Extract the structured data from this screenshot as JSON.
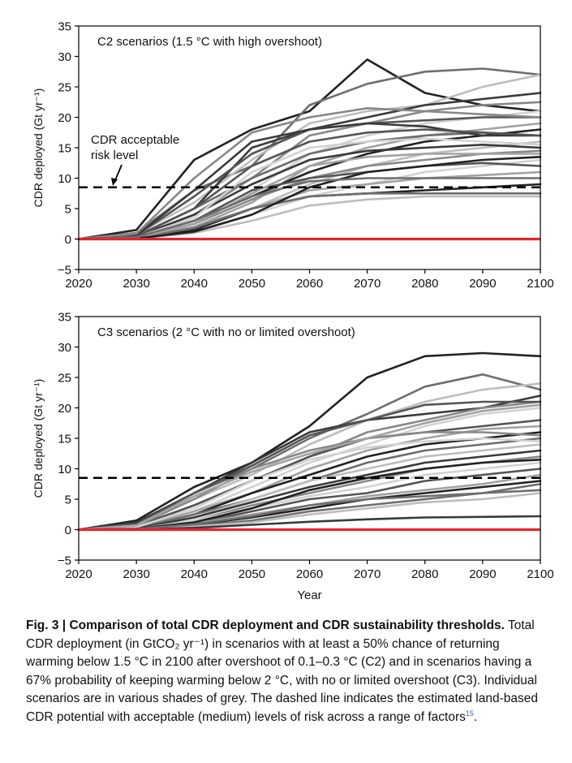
{
  "chart_data": [
    {
      "type": "line",
      "title": "C2 scenarios (1.5 °C with high overshoot)",
      "xlabel": "",
      "ylabel": "CDR deployed (Gt yr⁻¹)",
      "x": [
        2020,
        2030,
        2040,
        2050,
        2060,
        2070,
        2080,
        2090,
        2100
      ],
      "xlim": [
        2020,
        2100
      ],
      "ylim": [
        -5,
        35
      ],
      "x_ticks": [
        "2020",
        "2030",
        "2040",
        "2050",
        "2060",
        "2070",
        "2080",
        "2090",
        "2100"
      ],
      "y_ticks": [
        "35",
        "30",
        "25",
        "20",
        "15",
        "10",
        "5",
        "0",
        "−5"
      ],
      "threshold": 8.5,
      "threshold_style": "dashed",
      "zero_line_color": "#e8242e",
      "annotation": [
        "CDR acceptable",
        "risk level"
      ],
      "grid": false,
      "series_colors": [
        "#222222",
        "#3a3a3a",
        "#555555",
        "#6e6e6e",
        "#888888",
        "#a2a2a2",
        "#bdbdbd",
        "#d2d2d2"
      ],
      "series": [
        {
          "values": [
            0,
            1.5,
            13,
            18,
            21,
            29.5,
            24,
            22,
            21
          ]
        },
        {
          "values": [
            0,
            1.0,
            8,
            12,
            22,
            25.5,
            27.5,
            28,
            27
          ]
        },
        {
          "values": [
            0,
            0.8,
            6,
            13,
            19,
            21,
            22,
            25,
            27
          ]
        },
        {
          "values": [
            0,
            0.5,
            5,
            15,
            18,
            20,
            22,
            23,
            24
          ]
        },
        {
          "values": [
            0,
            0.4,
            4,
            10,
            17,
            19,
            21,
            22,
            22.5
          ]
        },
        {
          "values": [
            0,
            0.3,
            3,
            8,
            14,
            17,
            19,
            20,
            21
          ]
        },
        {
          "values": [
            0,
            0.6,
            7,
            14,
            18,
            19,
            19.5,
            20,
            20
          ]
        },
        {
          "values": [
            0,
            0.2,
            2,
            6,
            12,
            15,
            17,
            18,
            19
          ]
        },
        {
          "values": [
            0,
            0.3,
            3,
            7,
            11,
            14,
            16,
            17,
            18
          ]
        },
        {
          "values": [
            0,
            0.5,
            5,
            10,
            14,
            16,
            17,
            17.5,
            17
          ]
        },
        {
          "values": [
            0,
            0.1,
            1.5,
            5,
            9,
            12,
            14,
            15,
            16
          ]
        },
        {
          "values": [
            0,
            0.4,
            4,
            9,
            13,
            14.5,
            15,
            15.5,
            15
          ]
        },
        {
          "values": [
            0,
            0.2,
            2.5,
            6.5,
            10,
            12,
            13,
            14,
            14.5
          ]
        },
        {
          "values": [
            0,
            0.1,
            1,
            4,
            7,
            9,
            11,
            12,
            13
          ]
        },
        {
          "values": [
            0,
            0.3,
            3,
            8,
            10,
            11,
            12,
            12.5,
            12
          ]
        },
        {
          "values": [
            0,
            0.2,
            2,
            5,
            8,
            9,
            10,
            10.5,
            11
          ]
        },
        {
          "values": [
            0,
            0.1,
            1.5,
            5,
            7,
            7.5,
            8,
            8.5,
            9
          ]
        },
        {
          "values": [
            0,
            0.2,
            1.8,
            5,
            7,
            7.5,
            7.5,
            7.5,
            7.5
          ]
        },
        {
          "values": [
            0,
            0.1,
            1,
            3,
            5.5,
            6.5,
            7,
            7,
            7
          ]
        },
        {
          "values": [
            0,
            0.6,
            8,
            16,
            18,
            19,
            18.5,
            17,
            17
          ]
        },
        {
          "values": [
            0,
            0.9,
            10,
            17.5,
            20,
            21.5,
            21,
            20.5,
            20
          ]
        },
        {
          "values": [
            0,
            0.3,
            3.5,
            11,
            15,
            16,
            16.5,
            16,
            15.5
          ]
        },
        {
          "values": [
            0,
            0.4,
            5,
            12,
            16,
            17.5,
            18,
            17.5,
            17
          ]
        },
        {
          "values": [
            0,
            0.2,
            2.5,
            7.5,
            12,
            13.5,
            14,
            14,
            14
          ]
        },
        {
          "values": [
            0,
            0.1,
            1.2,
            4,
            8.5,
            11,
            12,
            13,
            13.5
          ]
        },
        {
          "values": [
            0,
            0.3,
            3,
            7,
            9.5,
            10,
            10,
            10,
            10
          ]
        }
      ]
    },
    {
      "type": "line",
      "title": "C3 scenarios (2 °C with no or limited overshoot)",
      "xlabel": "Year",
      "ylabel": "CDR deployed (Gt yr⁻¹)",
      "x": [
        2020,
        2030,
        2040,
        2050,
        2060,
        2070,
        2080,
        2090,
        2100
      ],
      "xlim": [
        2020,
        2100
      ],
      "ylim": [
        -5,
        35
      ],
      "x_ticks": [
        "2020",
        "2030",
        "2040",
        "2050",
        "2060",
        "2070",
        "2080",
        "2090",
        "2100"
      ],
      "y_ticks": [
        "35",
        "30",
        "25",
        "20",
        "15",
        "10",
        "5",
        "0",
        "−5"
      ],
      "threshold": 8.5,
      "threshold_style": "dashed",
      "zero_line_color": "#e8242e",
      "grid": false,
      "series_colors": [
        "#222222",
        "#3a3a3a",
        "#555555",
        "#6e6e6e",
        "#888888",
        "#a2a2a2",
        "#bdbdbd",
        "#d2d2d2"
      ],
      "series": [
        {
          "values": [
            0,
            1.5,
            7,
            11,
            17,
            25,
            28.5,
            29,
            28.5
          ]
        },
        {
          "values": [
            0,
            1.0,
            6,
            10,
            15,
            19,
            23.5,
            25.5,
            23
          ]
        },
        {
          "values": [
            0,
            0.8,
            5,
            9,
            14,
            18,
            21,
            23,
            24
          ]
        },
        {
          "values": [
            0,
            1.2,
            6,
            11,
            16,
            18,
            19,
            20,
            22
          ]
        },
        {
          "values": [
            0,
            0.5,
            4,
            8,
            12,
            16,
            18,
            20,
            21
          ]
        },
        {
          "values": [
            0,
            0.4,
            3,
            7,
            11,
            14,
            17,
            19,
            20
          ]
        },
        {
          "values": [
            0,
            0.6,
            4,
            8,
            12,
            15,
            16,
            17,
            18
          ]
        },
        {
          "values": [
            0,
            0.3,
            3,
            6,
            10,
            13,
            15,
            16.5,
            17
          ]
        },
        {
          "values": [
            0,
            0.2,
            2.5,
            6,
            9,
            12,
            14,
            15,
            16
          ]
        },
        {
          "values": [
            0,
            0.3,
            2.5,
            5,
            8,
            11,
            13,
            14,
            15
          ]
        },
        {
          "values": [
            0,
            0.2,
            2,
            5,
            8,
            10,
            12,
            13,
            14
          ]
        },
        {
          "values": [
            0,
            0.2,
            2,
            4.5,
            7,
            9,
            11,
            12,
            13
          ]
        },
        {
          "values": [
            0,
            0.1,
            1.5,
            4,
            6,
            8,
            10,
            11,
            12
          ]
        },
        {
          "values": [
            0,
            0.1,
            1.5,
            3.5,
            5.5,
            7,
            9,
            10,
            11
          ]
        },
        {
          "values": [
            0,
            0.1,
            1,
            3,
            5,
            6,
            8,
            9,
            10
          ]
        },
        {
          "values": [
            0,
            0.1,
            1,
            2.5,
            4,
            5.5,
            6.5,
            7.5,
            9
          ]
        },
        {
          "values": [
            0,
            0.1,
            0.8,
            2,
            3.5,
            5,
            6,
            7,
            8
          ]
        },
        {
          "values": [
            0,
            0.05,
            0.6,
            1.5,
            3,
            4,
            5,
            6,
            7.5
          ]
        },
        {
          "values": [
            0,
            0.05,
            0.5,
            1.2,
            2.5,
            3.5,
            4.5,
            5,
            6
          ]
        },
        {
          "values": [
            0,
            0.02,
            0.3,
            0.8,
            1.3,
            1.7,
            2,
            2.1,
            2.2
          ]
        },
        {
          "values": [
            0,
            0.6,
            5,
            10,
            13,
            15,
            16,
            16,
            15.5
          ]
        },
        {
          "values": [
            0,
            0.4,
            3.5,
            8,
            11.5,
            13.5,
            14.5,
            15,
            14.5
          ]
        },
        {
          "values": [
            0,
            0.9,
            6,
            10.5,
            15.5,
            18,
            20.5,
            21,
            21
          ]
        },
        {
          "values": [
            0,
            0.7,
            5.5,
            9.5,
            12.5,
            15,
            17.5,
            19.5,
            20.5
          ]
        },
        {
          "values": [
            0,
            0.15,
            1.2,
            3.5,
            6.5,
            8.5,
            10,
            11,
            11.5
          ]
        },
        {
          "values": [
            0,
            0.1,
            0.9,
            2.2,
            4,
            5,
            5.5,
            6,
            6.5
          ]
        }
      ]
    }
  ],
  "caption": {
    "label": "Fig. 3 | ",
    "title": "Comparison of total CDR deployment and CDR sustainability thresholds.",
    "body": " Total CDR deployment (in GtCO₂ yr⁻¹) in scenarios with at least a 50% chance of returning warming below 1.5 °C in 2100 after overshoot of 0.1–0.3 °C (C2) and in scenarios having a 67% probability of keeping warming below 2 °C, with no or limited overshoot (C3). Individual scenarios are in various shades of grey. The dashed line indicates the estimated land-based CDR potential with acceptable (medium) levels of risk across a range of factors",
    "ref": "15",
    "end": "."
  }
}
